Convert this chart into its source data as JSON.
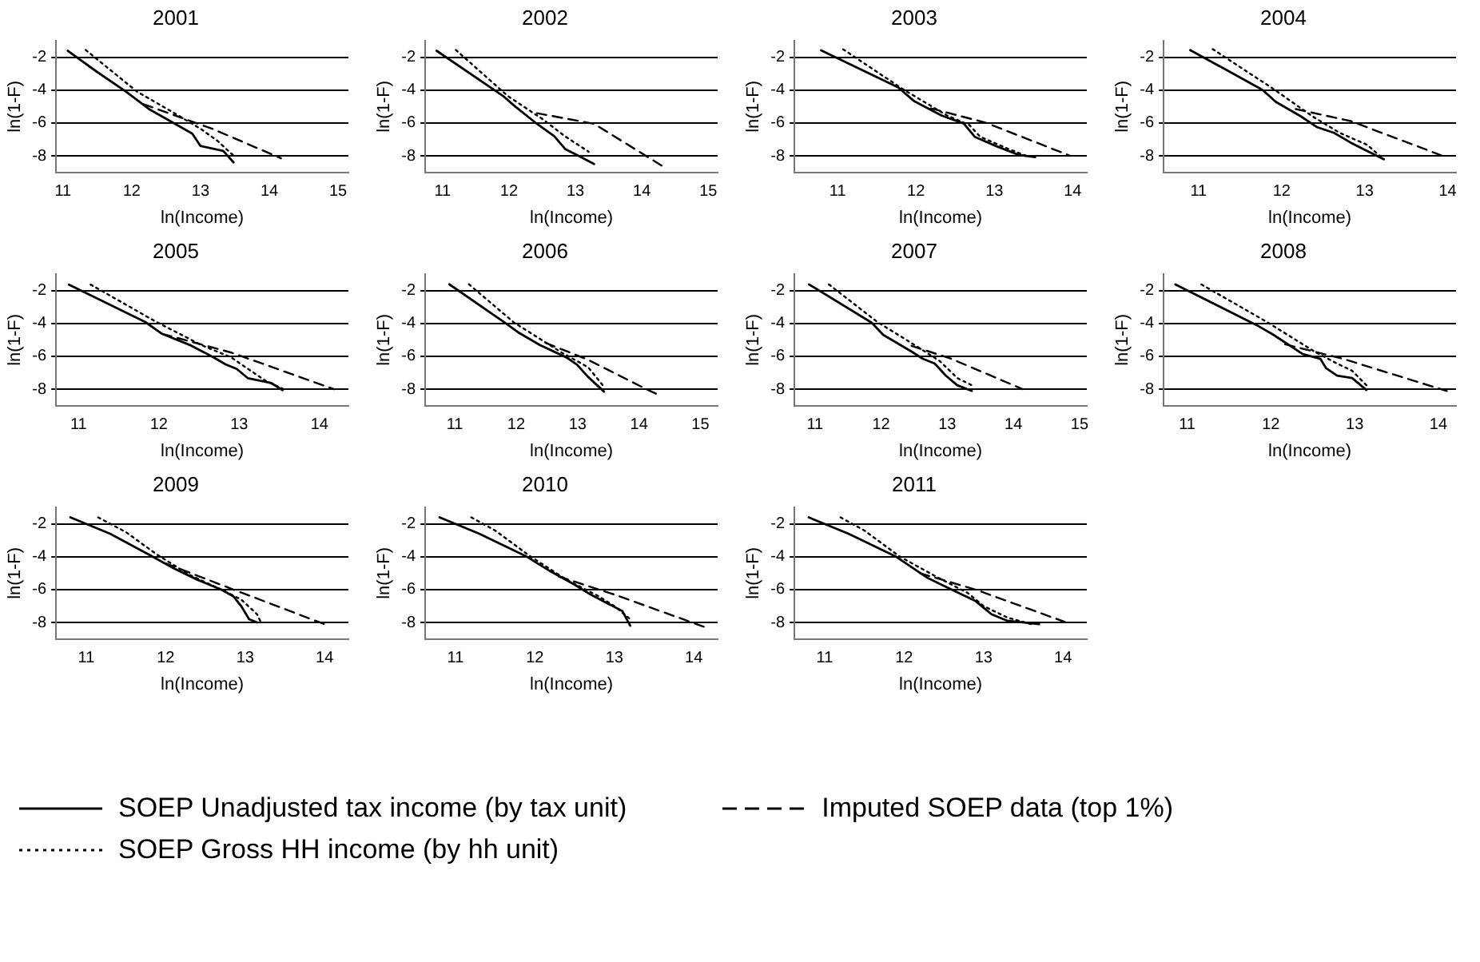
{
  "chart_data": [
    {
      "type": "line",
      "title": "2001",
      "xlabel": "ln(Income)",
      "ylabel": "ln(1-F)",
      "xlim": [
        10.9,
        15.15
      ],
      "xticks": [
        11,
        12,
        13,
        14,
        15
      ],
      "ylim": [
        -9,
        -1
      ],
      "yticks": [
        -8,
        -6,
        -4,
        -2
      ],
      "grid": "y",
      "series": [
        {
          "color": "#000000",
          "line_style": "solid",
          "x": [
            11.07,
            11.5,
            11.92,
            12.25,
            12.63,
            12.88,
            13.0,
            13.33,
            13.48
          ],
          "values": [
            -1.6,
            -2.9,
            -4.1,
            -5.15,
            -6.05,
            -6.65,
            -7.4,
            -7.7,
            -8.4
          ]
        },
        {
          "color": "#000000",
          "line_style": "dotted",
          "x": [
            11.33,
            12.08,
            12.58,
            13.0,
            13.25,
            13.47
          ],
          "values": [
            -1.55,
            -4.1,
            -5.3,
            -6.35,
            -7.1,
            -7.95
          ]
        },
        {
          "color": "#000000",
          "line_style": "dashed",
          "x": [
            12.17,
            13.17,
            14.17
          ],
          "values": [
            -4.85,
            -6.35,
            -8.15
          ]
        }
      ]
    },
    {
      "type": "line",
      "title": "2002",
      "xlabel": "ln(Income)",
      "ylabel": "ln(1-F)",
      "xlim": [
        10.74,
        15.14
      ],
      "xticks": [
        11,
        12,
        13,
        14,
        15
      ],
      "ylim": [
        -9,
        -1
      ],
      "yticks": [
        -8,
        -6,
        -4,
        -2
      ],
      "grid": "y",
      "series": [
        {
          "color": "#000000",
          "line_style": "solid",
          "x": [
            10.91,
            11.91,
            12.08,
            12.42,
            12.68,
            12.85,
            13.07,
            13.28
          ],
          "values": [
            -1.6,
            -4.35,
            -4.95,
            -6.05,
            -6.8,
            -7.6,
            -8.05,
            -8.5
          ]
        },
        {
          "color": "#000000",
          "line_style": "dotted",
          "x": [
            11.2,
            11.98,
            12.5,
            12.84,
            13.2
          ],
          "values": [
            -1.55,
            -4.35,
            -5.75,
            -6.8,
            -7.75
          ]
        },
        {
          "color": "#000000",
          "line_style": "dashed",
          "x": [
            12.42,
            13.28,
            14.3
          ],
          "values": [
            -5.4,
            -6.05,
            -8.6
          ]
        }
      ]
    },
    {
      "type": "line",
      "title": "2003",
      "xlabel": "ln(Income)",
      "ylabel": "ln(1-F)",
      "xlim": [
        10.45,
        14.18
      ],
      "xticks": [
        11,
        12,
        13,
        14
      ],
      "ylim": [
        -9,
        -1
      ],
      "yticks": [
        -8,
        -6,
        -4,
        -2
      ],
      "grid": "y",
      "series": [
        {
          "color": "#000000",
          "line_style": "solid",
          "x": [
            10.79,
            11.77,
            11.98,
            12.33,
            12.61,
            12.75,
            13.03,
            13.31,
            13.52
          ],
          "values": [
            -1.57,
            -3.82,
            -4.68,
            -5.55,
            -6.03,
            -6.84,
            -7.42,
            -7.94,
            -8.08
          ]
        },
        {
          "color": "#000000",
          "line_style": "dotted",
          "x": [
            11.07,
            11.84,
            12.4,
            12.68,
            12.82,
            13.17,
            13.45
          ],
          "values": [
            -1.51,
            -3.96,
            -5.55,
            -6.12,
            -6.84,
            -7.56,
            -8.08
          ]
        },
        {
          "color": "#000000",
          "line_style": "dashed",
          "x": [
            12.19,
            12.89,
            13.97
          ],
          "values": [
            -5.11,
            -5.98,
            -8.0
          ]
        }
      ]
    },
    {
      "type": "line",
      "title": "2004",
      "xlabel": "ln(Income)",
      "ylabel": "ln(1-F)",
      "xlim": [
        10.58,
        14.1
      ],
      "xticks": [
        11,
        12,
        13,
        14
      ],
      "ylim": [
        -9,
        -1
      ],
      "yticks": [
        -8,
        -6,
        -4,
        -2
      ],
      "grid": "y",
      "series": [
        {
          "color": "#000000",
          "line_style": "solid",
          "x": [
            10.9,
            11.77,
            11.93,
            12.23,
            12.43,
            12.63,
            12.83,
            13.03,
            13.23
          ],
          "values": [
            -1.56,
            -3.98,
            -4.71,
            -5.59,
            -6.26,
            -6.6,
            -7.19,
            -7.71,
            -8.21
          ]
        },
        {
          "color": "#000000",
          "line_style": "dotted",
          "x": [
            11.17,
            11.9,
            12.37,
            12.7,
            13.03,
            13.23
          ],
          "values": [
            -1.5,
            -3.92,
            -5.59,
            -6.6,
            -7.33,
            -8.21
          ]
        },
        {
          "color": "#000000",
          "line_style": "dashed",
          "x": [
            12.17,
            12.83,
            13.97
          ],
          "values": [
            -5.15,
            -5.88,
            -8.06
          ]
        }
      ]
    },
    {
      "type": "line",
      "title": "2005",
      "xlabel": "ln(Income)",
      "ylabel": "ln(1-F)",
      "xlim": [
        10.72,
        14.36
      ],
      "xticks": [
        11,
        12,
        13,
        14
      ],
      "ylim": [
        -9,
        -1
      ],
      "yticks": [
        -8,
        -6,
        -4,
        -2
      ],
      "grid": "y",
      "series": [
        {
          "color": "#000000",
          "line_style": "solid",
          "x": [
            10.88,
            11.83,
            12.04,
            12.4,
            12.68,
            12.83,
            12.97,
            13.11,
            13.4,
            13.54
          ],
          "values": [
            -1.63,
            -3.91,
            -4.63,
            -5.34,
            -6.06,
            -6.49,
            -6.77,
            -7.34,
            -7.63,
            -8.06
          ]
        },
        {
          "color": "#000000",
          "line_style": "dotted",
          "x": [
            11.15,
            11.97,
            12.54,
            12.9,
            13.11,
            13.33,
            13.54
          ],
          "values": [
            -1.63,
            -3.91,
            -5.34,
            -6.06,
            -6.77,
            -7.49,
            -7.97
          ]
        },
        {
          "color": "#000000",
          "line_style": "dashed",
          "x": [
            12.04,
            12.9,
            14.18
          ],
          "values": [
            -4.63,
            -5.77,
            -8.0
          ]
        }
      ]
    },
    {
      "type": "line",
      "title": "2006",
      "xlabel": "ln(Income)",
      "ylabel": "ln(1-F)",
      "xlim": [
        10.52,
        15.28
      ],
      "xticks": [
        11,
        12,
        13,
        14,
        15
      ],
      "ylim": [
        -9,
        -1
      ],
      "yticks": [
        -8,
        -6,
        -4,
        -2
      ],
      "grid": "y",
      "series": [
        {
          "color": "#000000",
          "line_style": "solid",
          "x": [
            10.91,
            11.83,
            12.05,
            12.39,
            12.82,
            12.99,
            13.17,
            13.43
          ],
          "values": [
            -1.61,
            -3.99,
            -4.58,
            -5.32,
            -6.07,
            -6.51,
            -7.25,
            -8.15
          ]
        },
        {
          "color": "#000000",
          "line_style": "dotted",
          "x": [
            11.23,
            11.96,
            12.74,
            13.17,
            13.43
          ],
          "values": [
            -1.61,
            -3.93,
            -5.77,
            -6.66,
            -7.85
          ]
        },
        {
          "color": "#000000",
          "line_style": "dashed",
          "x": [
            12.48,
            13.17,
            14.12,
            14.29
          ],
          "values": [
            -5.18,
            -6.21,
            -8.0,
            -8.3
          ]
        }
      ]
    },
    {
      "type": "line",
      "title": "2007",
      "xlabel": "ln(Income)",
      "ylabel": "ln(1-F)",
      "xlim": [
        10.69,
        15.11
      ],
      "xticks": [
        11,
        12,
        13,
        14,
        15
      ],
      "ylim": [
        -9,
        -1
      ],
      "yticks": [
        -8,
        -6,
        -4,
        -2
      ],
      "grid": "y",
      "series": [
        {
          "color": "#000000",
          "line_style": "solid",
          "x": [
            10.91,
            11.86,
            12.03,
            12.46,
            12.63,
            12.81,
            12.98,
            13.15,
            13.37
          ],
          "values": [
            -1.62,
            -3.96,
            -4.69,
            -5.71,
            -6.15,
            -6.44,
            -7.18,
            -7.76,
            -8.11
          ]
        },
        {
          "color": "#000000",
          "line_style": "dotted",
          "x": [
            11.21,
            11.94,
            12.55,
            12.89,
            13.15,
            13.37
          ],
          "values": [
            -1.62,
            -3.9,
            -5.42,
            -6.3,
            -7.32,
            -7.76
          ]
        },
        {
          "color": "#000000",
          "line_style": "dashed",
          "x": [
            12.46,
            13.06,
            14.14
          ],
          "values": [
            -5.36,
            -6.15,
            -8.0
          ]
        }
      ]
    },
    {
      "type": "line",
      "title": "2008",
      "xlabel": "ln(Income)",
      "ylabel": "ln(1-F)",
      "xlim": [
        10.72,
        14.21
      ],
      "xticks": [
        11,
        12,
        13,
        14
      ],
      "ylim": [
        -9,
        -1
      ],
      "yticks": [
        -8,
        -6,
        -4,
        -2
      ],
      "grid": "y",
      "series": [
        {
          "color": "#000000",
          "line_style": "solid",
          "x": [
            10.86,
            11.83,
            12.03,
            12.38,
            12.59,
            12.66,
            12.79,
            12.97,
            13.14
          ],
          "values": [
            -1.62,
            -4.1,
            -4.69,
            -5.86,
            -6.15,
            -6.73,
            -7.18,
            -7.32,
            -8.05
          ]
        },
        {
          "color": "#000000",
          "line_style": "dotted",
          "x": [
            11.17,
            11.97,
            12.52,
            12.79,
            12.97,
            13.14
          ],
          "values": [
            -1.62,
            -3.96,
            -5.71,
            -6.44,
            -6.88,
            -7.76
          ]
        },
        {
          "color": "#000000",
          "line_style": "dashed",
          "x": [
            12.17,
            12.86,
            14.1
          ],
          "values": [
            -5.27,
            -6.15,
            -8.11
          ]
        }
      ]
    },
    {
      "type": "line",
      "title": "2009",
      "xlabel": "ln(Income)",
      "ylabel": "ln(1-F)",
      "xlim": [
        10.62,
        14.3
      ],
      "xticks": [
        11,
        12,
        13,
        14
      ],
      "ylim": [
        -9,
        -1
      ],
      "yticks": [
        -8,
        -6,
        -4,
        -2
      ],
      "grid": "y",
      "series": [
        {
          "color": "#000000",
          "line_style": "solid",
          "x": [
            10.8,
            11.3,
            11.8,
            12.1,
            12.4,
            12.7,
            12.85,
            12.95,
            13.05,
            13.15
          ],
          "values": [
            -1.6,
            -2.6,
            -3.9,
            -4.7,
            -5.4,
            -6.0,
            -6.4,
            -7.0,
            -7.8,
            -8.0
          ]
        },
        {
          "color": "#000000",
          "line_style": "dotted",
          "x": [
            11.15,
            11.5,
            11.9,
            12.3,
            12.7,
            12.95,
            13.15,
            13.2
          ],
          "values": [
            -1.6,
            -2.5,
            -3.9,
            -5.1,
            -6.0,
            -6.6,
            -7.5,
            -8.0
          ]
        },
        {
          "color": "#000000",
          "line_style": "dashed",
          "x": [
            12.0,
            12.8,
            14.05
          ],
          "values": [
            -4.4,
            -5.9,
            -8.2
          ]
        }
      ]
    },
    {
      "type": "line",
      "title": "2010",
      "xlabel": "ln(Income)",
      "ylabel": "ln(1-F)",
      "xlim": [
        10.62,
        14.3
      ],
      "xticks": [
        11,
        12,
        13,
        14
      ],
      "ylim": [
        -9,
        -1
      ],
      "yticks": [
        -8,
        -6,
        -4,
        -2
      ],
      "grid": "y",
      "series": [
        {
          "color": "#000000",
          "line_style": "solid",
          "x": [
            10.8,
            11.3,
            11.9,
            12.2,
            12.5,
            12.7,
            12.9,
            13.1,
            13.2
          ],
          "values": [
            -1.6,
            -2.6,
            -4.0,
            -4.9,
            -5.7,
            -6.3,
            -6.8,
            -7.3,
            -8.2
          ]
        },
        {
          "color": "#000000",
          "line_style": "dotted",
          "x": [
            11.2,
            11.5,
            11.95,
            12.4,
            12.8,
            13.0,
            13.2
          ],
          "values": [
            -1.6,
            -2.4,
            -4.0,
            -5.4,
            -6.4,
            -7.0,
            -7.8
          ]
        },
        {
          "color": "#000000",
          "line_style": "dashed",
          "x": [
            12.3,
            13.0,
            14.15
          ],
          "values": [
            -5.2,
            -6.3,
            -8.3
          ]
        }
      ]
    },
    {
      "type": "line",
      "title": "2011",
      "xlabel": "ln(Income)",
      "ylabel": "ln(1-F)",
      "xlim": [
        10.62,
        14.3
      ],
      "xticks": [
        11,
        12,
        13,
        14
      ],
      "ylim": [
        -9,
        -1
      ],
      "yticks": [
        -8,
        -6,
        -4,
        -2
      ],
      "grid": "y",
      "legend": "bottom",
      "series": [
        {
          "name": "SOEP Unadjusted tax income (by tax unit)",
          "color": "#000000",
          "line_style": "solid",
          "x": [
            10.8,
            11.3,
            11.9,
            12.3,
            12.6,
            12.9,
            13.1,
            13.3,
            13.7
          ],
          "values": [
            -1.6,
            -2.6,
            -4.0,
            -5.3,
            -6.0,
            -6.7,
            -7.5,
            -7.9,
            -8.1
          ]
        },
        {
          "name": "SOEP Gross HH income (by hh unit)",
          "color": "#000000",
          "line_style": "dotted",
          "x": [
            11.2,
            11.5,
            11.95,
            12.4,
            12.8,
            13.0,
            13.3,
            13.6
          ],
          "values": [
            -1.6,
            -2.4,
            -4.0,
            -5.2,
            -6.2,
            -7.0,
            -7.7,
            -8.1
          ]
        },
        {
          "name": "Imputed SOEP data (top 1%)",
          "color": "#000000",
          "line_style": "dashed",
          "x": [
            12.2,
            12.9,
            14.1
          ],
          "values": [
            -5.0,
            -6.0,
            -8.1
          ]
        }
      ]
    }
  ]
}
